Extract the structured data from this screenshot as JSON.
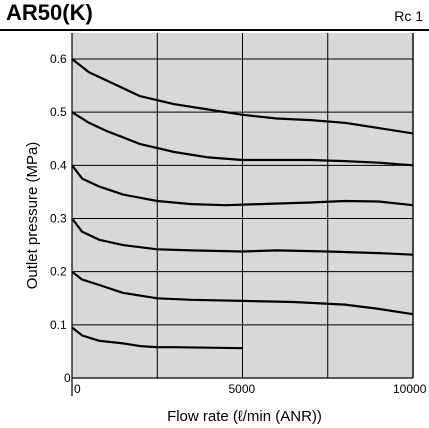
{
  "header": {
    "title": "AR50(K)",
    "port_size": "Rc 1"
  },
  "chart_data": {
    "type": "line",
    "title": "AR50(K)",
    "xlabel": "Flow rate (ℓ/min (ANR))",
    "ylabel": "Outlet pressure (MPa)",
    "xlim": [
      0,
      10000
    ],
    "ylim": [
      0,
      0.6
    ],
    "x_ticks": [
      "0",
      "5000",
      "10000"
    ],
    "y_ticks": [
      "0",
      "0.1",
      "0.2",
      "0.3",
      "0.4",
      "0.5",
      "0.6"
    ],
    "y_origin_label": "0",
    "grid": true,
    "background_color": "#d8d8d8",
    "line_color": "#000000",
    "series": [
      {
        "x": [
          0,
          300,
          800,
          1500,
          2000,
          2500,
          3000,
          4000,
          5000
        ],
        "y": [
          0.095,
          0.08,
          0.07,
          0.065,
          0.06,
          0.058,
          0.058,
          0.057,
          0.056
        ]
      },
      {
        "x": [
          0,
          300,
          800,
          1500,
          2500,
          3500,
          5000,
          6500,
          8000,
          9000,
          10000
        ],
        "y": [
          0.2,
          0.185,
          0.175,
          0.16,
          0.15,
          0.147,
          0.145,
          0.143,
          0.138,
          0.13,
          0.12
        ]
      },
      {
        "x": [
          0,
          300,
          800,
          1500,
          2500,
          3500,
          5000,
          6000,
          7500,
          9000,
          10000
        ],
        "y": [
          0.3,
          0.275,
          0.26,
          0.25,
          0.242,
          0.24,
          0.238,
          0.24,
          0.238,
          0.235,
          0.232
        ]
      },
      {
        "x": [
          0,
          300,
          800,
          1500,
          2500,
          3500,
          4500,
          5500,
          7000,
          8000,
          9000,
          10000
        ],
        "y": [
          0.4,
          0.375,
          0.36,
          0.345,
          0.333,
          0.327,
          0.325,
          0.327,
          0.33,
          0.333,
          0.332,
          0.325
        ]
      },
      {
        "x": [
          0,
          500,
          1000,
          2000,
          3000,
          4000,
          5000,
          6000,
          7000,
          8000,
          9000,
          10000
        ],
        "y": [
          0.5,
          0.48,
          0.465,
          0.44,
          0.425,
          0.415,
          0.41,
          0.41,
          0.41,
          0.408,
          0.405,
          0.4
        ]
      },
      {
        "x": [
          0,
          500,
          1000,
          2000,
          3000,
          4000,
          5000,
          6000,
          7000,
          8000,
          9000,
          10000
        ],
        "y": [
          0.6,
          0.575,
          0.56,
          0.53,
          0.515,
          0.505,
          0.495,
          0.488,
          0.485,
          0.48,
          0.47,
          0.46
        ]
      }
    ]
  }
}
